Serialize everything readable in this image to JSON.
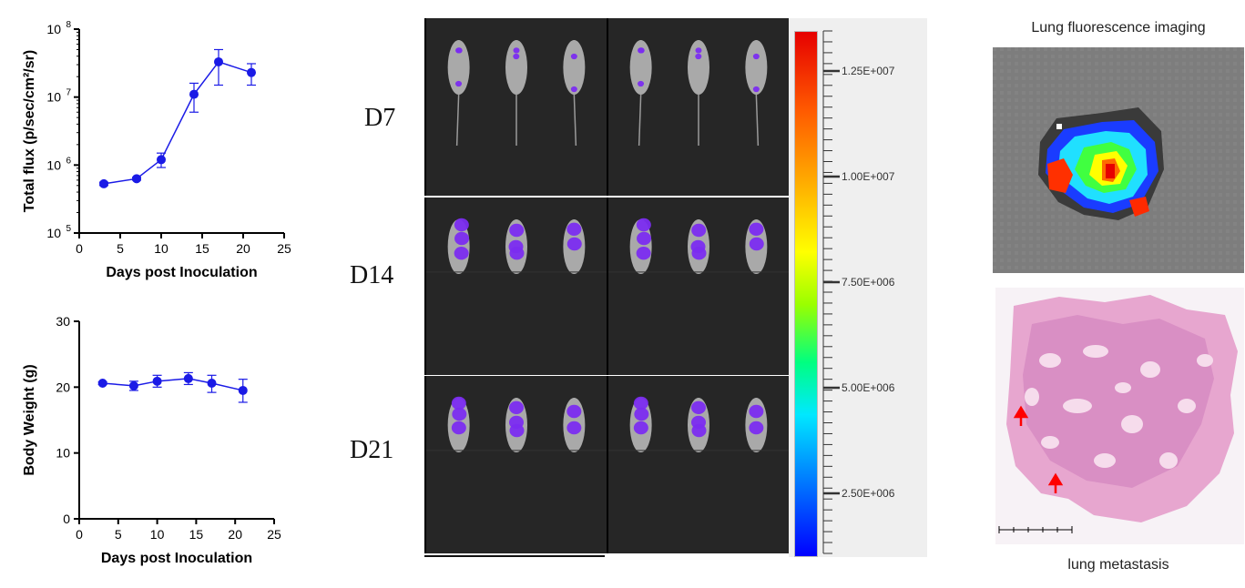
{
  "chart_data": [
    {
      "type": "line",
      "xlabel": "Days post Inoculation",
      "ylabel": "Total flux (p/sec/cm²/sr)",
      "yscale": "log",
      "ylim": [
        100000,
        100000000
      ],
      "xlim": [
        0,
        25
      ],
      "xticks": [
        0,
        5,
        10,
        15,
        20,
        25
      ],
      "yticks": [
        {
          "v": 100000,
          "b": "10",
          "e": "5"
        },
        {
          "v": 1000000,
          "b": "10",
          "e": "6"
        },
        {
          "v": 10000000,
          "b": "10",
          "e": "7"
        },
        {
          "v": 100000000,
          "b": "10",
          "e": "8"
        }
      ],
      "color": "#1a1ae6",
      "series": [
        {
          "x": [
            3,
            7,
            10,
            14,
            17,
            21
          ],
          "y": [
            530000,
            630000,
            1200000,
            11000000,
            33000000,
            23000000
          ],
          "err_low": [
            500000,
            600000,
            920000,
            6000000,
            15000000,
            15000000
          ],
          "err_high": [
            560000,
            660000,
            1500000,
            16000000,
            50000000,
            31000000
          ]
        }
      ]
    },
    {
      "type": "line",
      "xlabel": "Days post Inoculation",
      "ylabel": "Body Weight (g)",
      "ylim": [
        0,
        30
      ],
      "xlim": [
        0,
        25
      ],
      "xticks": [
        0,
        5,
        10,
        15,
        20,
        25
      ],
      "yticks": [
        0,
        10,
        20,
        30
      ],
      "color": "#1a1ae6",
      "series": [
        {
          "x": [
            3,
            7,
            10,
            14,
            17,
            21
          ],
          "y": [
            20.6,
            20.2,
            20.9,
            21.3,
            20.6,
            19.5
          ],
          "err_low": [
            20.4,
            19.5,
            20.0,
            20.4,
            19.2,
            17.7
          ],
          "err_high": [
            20.8,
            20.9,
            21.8,
            22.2,
            21.8,
            21.2
          ]
        }
      ]
    }
  ],
  "imaging": {
    "days": [
      "D7",
      "D14",
      "D21"
    ],
    "colorbar_ticks": [
      "1.25E+007",
      "1.00E+007",
      "7.50E+006",
      "5.00E+006",
      "2.50E+006"
    ],
    "colors": {
      "signal": "#7b2cf0",
      "background": "#262626"
    }
  },
  "captions": {
    "fluorescence": "Lung fluorescence imaging",
    "histology": "lung metastasis"
  }
}
